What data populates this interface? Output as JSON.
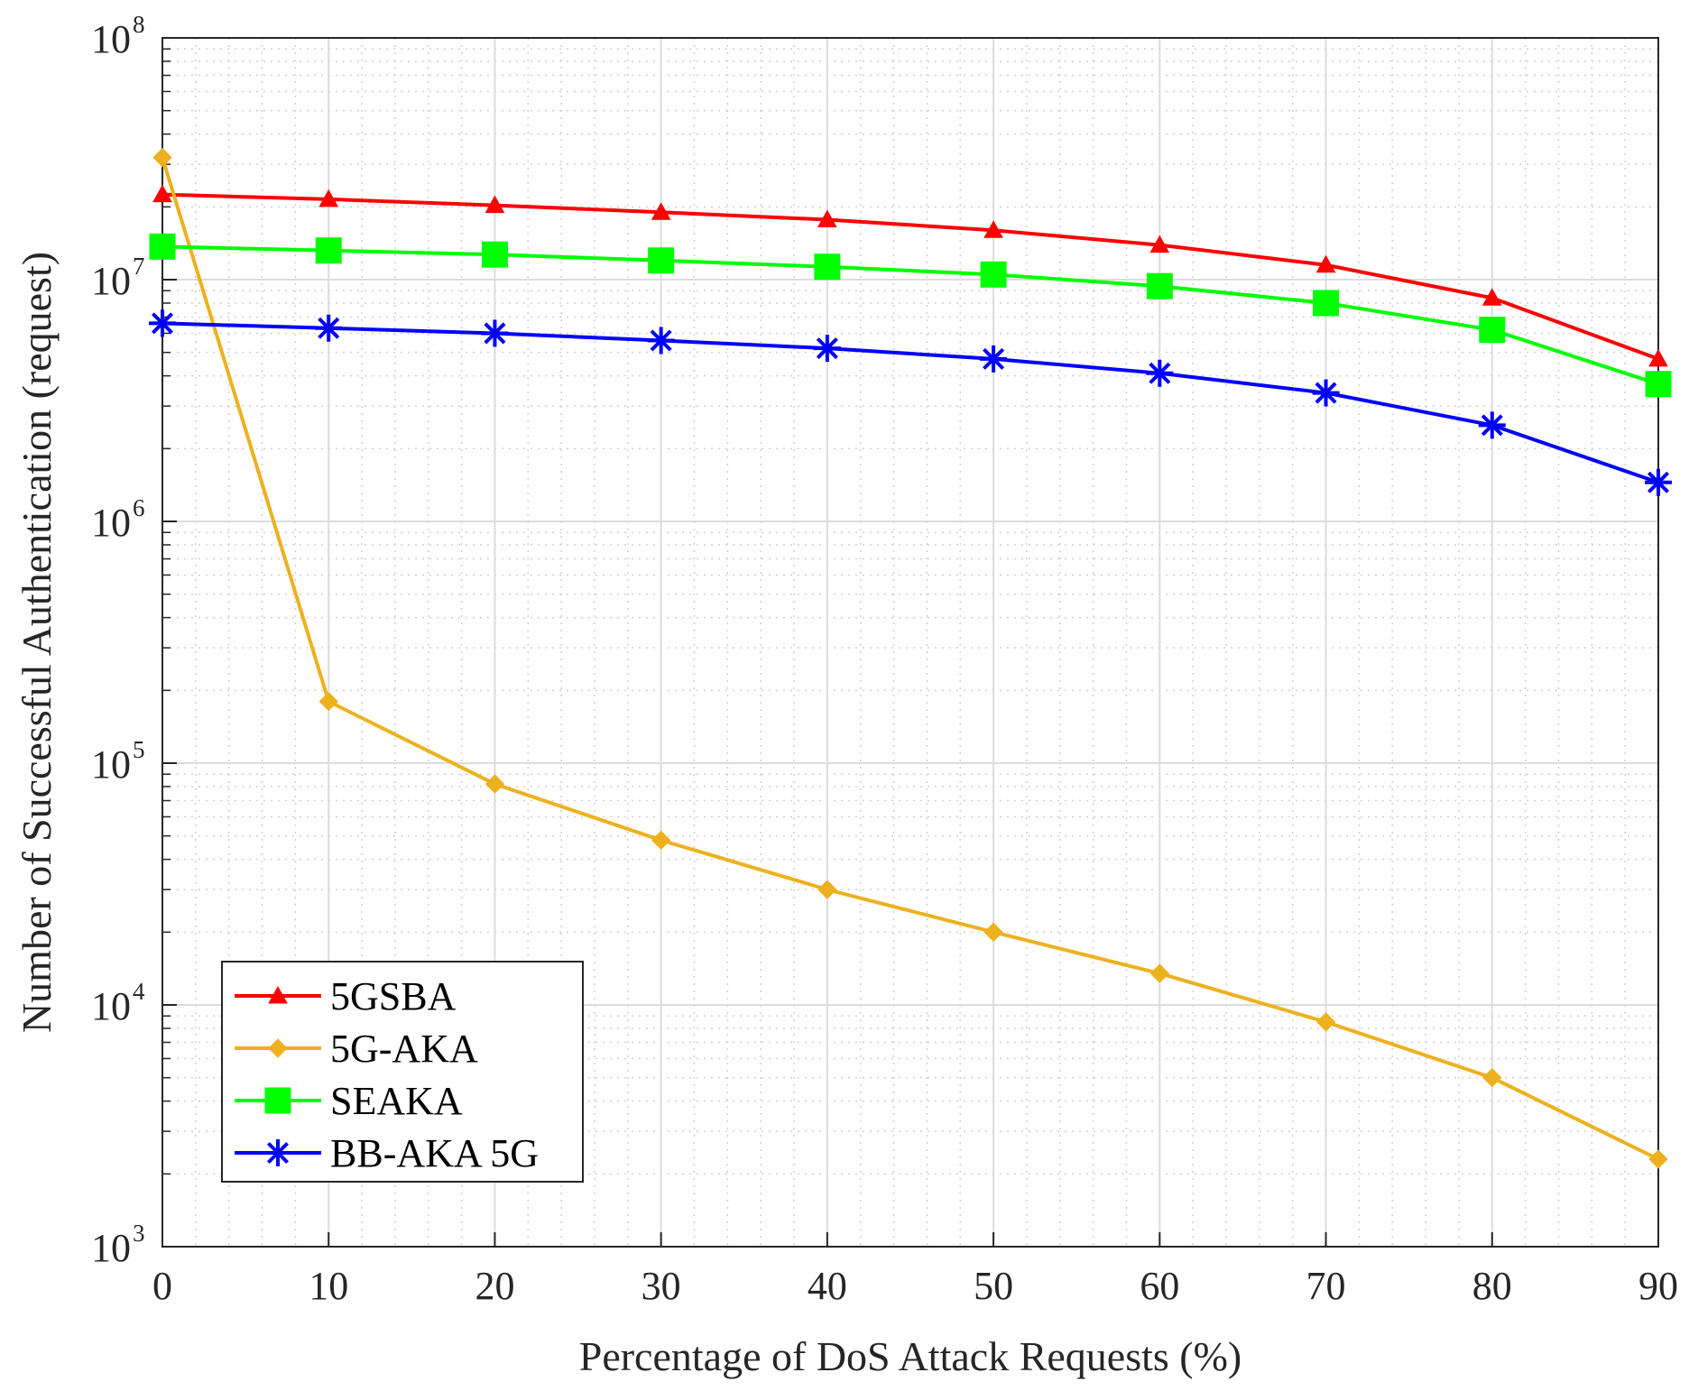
{
  "chart_data": {
    "type": "line",
    "xlabel": "Percentage of DoS Attack Requests (%)",
    "ylabel": "Number of Successful Authentication (request)",
    "x": [
      0,
      10,
      20,
      30,
      40,
      50,
      60,
      70,
      80,
      90
    ],
    "x_ticks": [
      "0",
      "10",
      "20",
      "30",
      "40",
      "50",
      "60",
      "70",
      "80",
      "90"
    ],
    "xlim": [
      0,
      90
    ],
    "y_scale": "log",
    "ylim": [
      1000,
      100000000
    ],
    "y_ticks": [
      {
        "base": "10",
        "exp": "3"
      },
      {
        "base": "10",
        "exp": "4"
      },
      {
        "base": "10",
        "exp": "5"
      },
      {
        "base": "10",
        "exp": "6"
      },
      {
        "base": "10",
        "exp": "7"
      },
      {
        "base": "10",
        "exp": "8"
      }
    ],
    "grid": true,
    "minor_grid": true,
    "legend_position": "bottom-left",
    "series": [
      {
        "name": "5GSBA",
        "color": "#ff0000",
        "marker": "triangle",
        "values": [
          22500000,
          21500000,
          20300000,
          19000000,
          17700000,
          16000000,
          13900000,
          11500000,
          8400000,
          4700000
        ]
      },
      {
        "name": "5G-AKA",
        "color": "#edb120",
        "marker": "diamond",
        "values": [
          32000000,
          180000,
          82000,
          48000,
          30000,
          20000,
          13500,
          8500,
          5000,
          2300
        ]
      },
      {
        "name": "SEAKA",
        "color": "#00ff00",
        "marker": "square",
        "values": [
          13700000,
          13200000,
          12700000,
          12000000,
          11300000,
          10500000,
          9400000,
          8000000,
          6200000,
          3700000
        ]
      },
      {
        "name": "BB-AKA 5G",
        "color": "#0000ff",
        "marker": "asterisk",
        "values": [
          6600000,
          6300000,
          6000000,
          5600000,
          5200000,
          4700000,
          4100000,
          3400000,
          2500000,
          1450000
        ]
      }
    ]
  }
}
